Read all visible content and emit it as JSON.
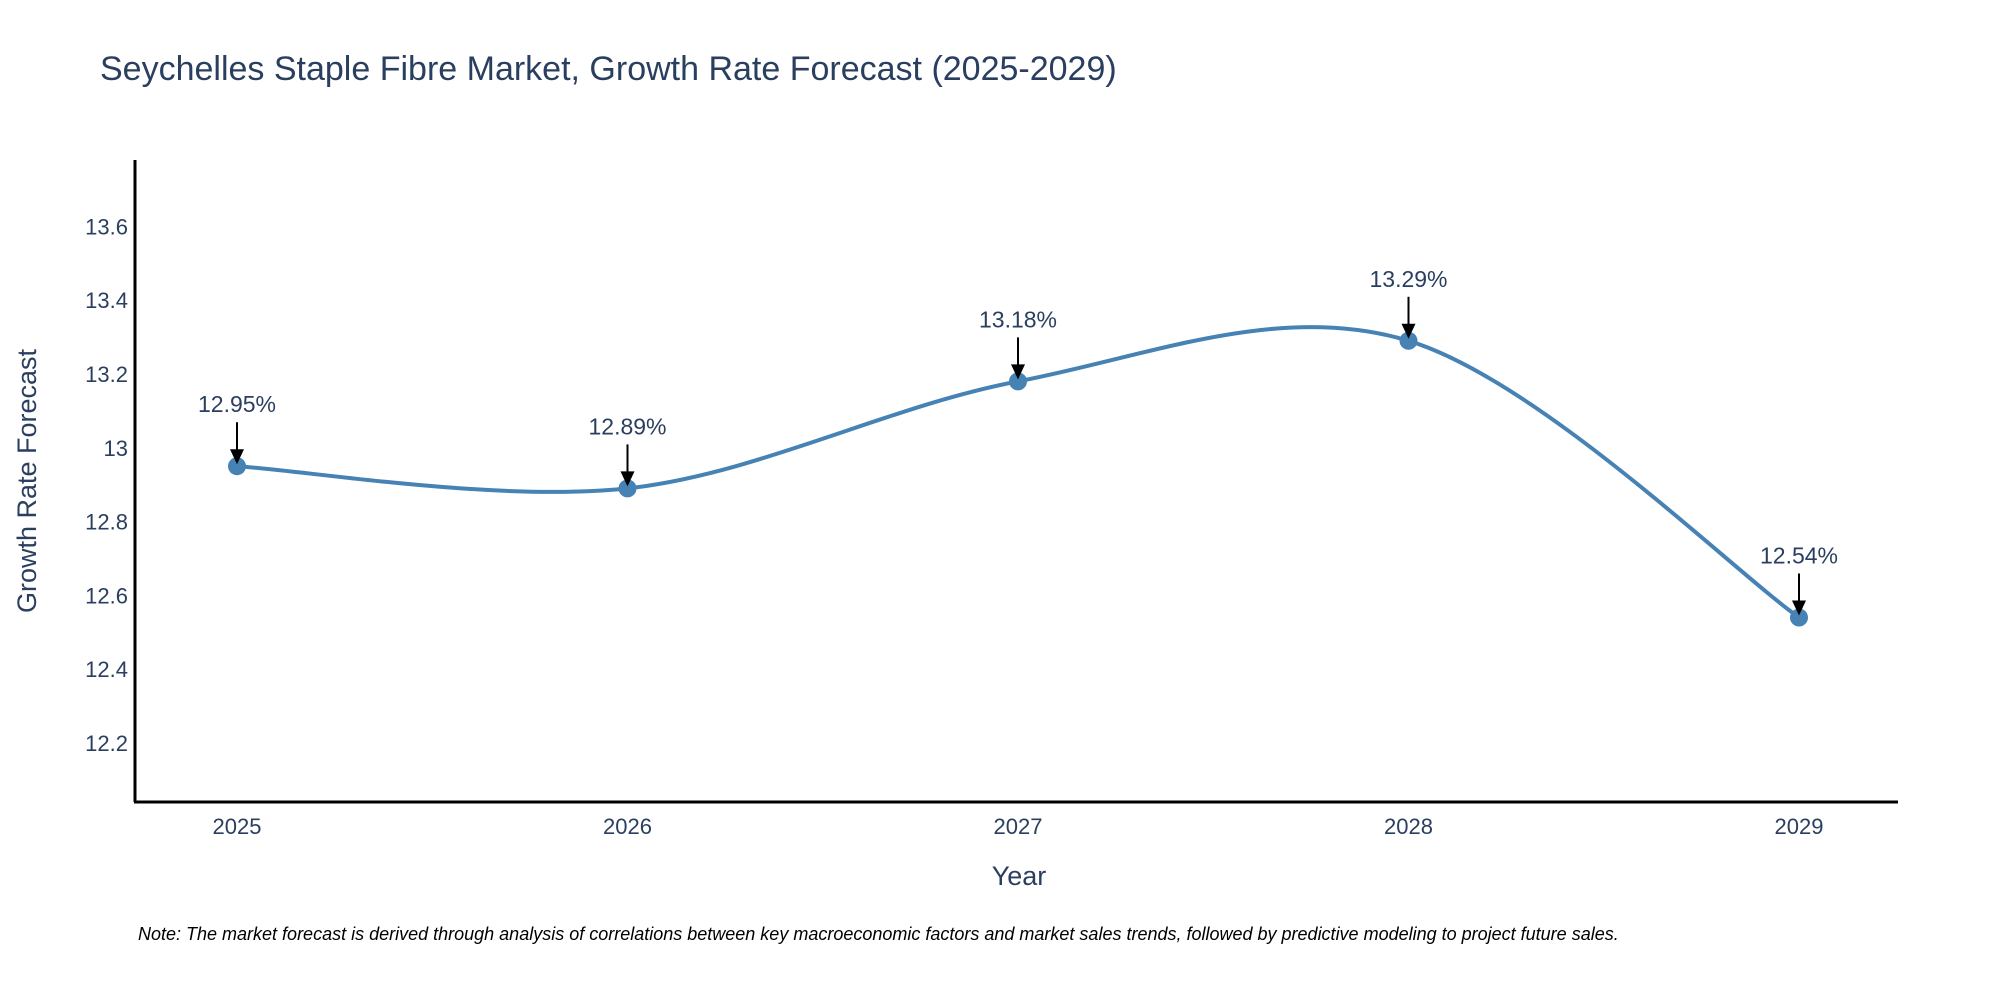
{
  "chart_data": {
    "type": "line",
    "title": "Seychelles Staple Fibre Market, Growth Rate Forecast (2025-2029)",
    "xlabel": "Year",
    "ylabel": "Growth Rate Forecast",
    "x": [
      "2025",
      "2026",
      "2027",
      "2028",
      "2029"
    ],
    "values": [
      12.95,
      12.89,
      13.18,
      13.29,
      12.54
    ],
    "data_labels": [
      "12.95%",
      "12.89%",
      "13.18%",
      "13.29%",
      "12.54%"
    ],
    "yticks": [
      12.2,
      12.4,
      12.6,
      12.8,
      13,
      13.2,
      13.4,
      13.6
    ],
    "ytick_labels": [
      "12.2",
      "12.4",
      "12.6",
      "12.8",
      "13",
      "13.2",
      "13.4",
      "13.6"
    ],
    "ylim": [
      12.04,
      13.78
    ],
    "grid": false,
    "legend": "none",
    "line_color": "#4682b4",
    "note": "Note: The market forecast is derived through analysis of correlations between key macroeconomic factors and market sales trends, followed by predictive modeling to project future sales."
  }
}
